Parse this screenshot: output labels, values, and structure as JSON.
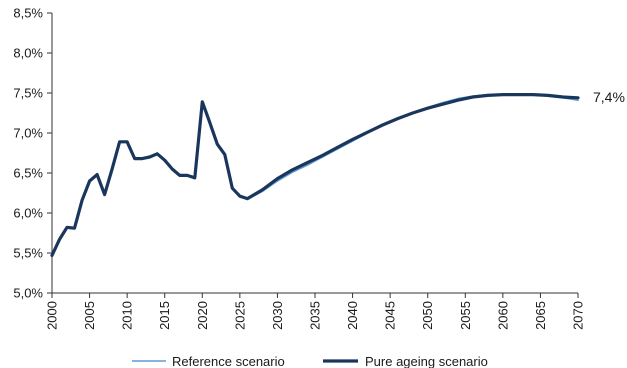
{
  "chart_data": {
    "type": "line",
    "title": "",
    "xlabel": "",
    "ylabel": "",
    "xlim": [
      2000,
      2070
    ],
    "ylim": [
      5.0,
      8.5
    ],
    "x_ticks": [
      2000,
      2005,
      2010,
      2015,
      2020,
      2025,
      2030,
      2035,
      2040,
      2045,
      2050,
      2055,
      2060,
      2065,
      2070
    ],
    "x_tick_labels": [
      "2000",
      "2005",
      "2010",
      "2015",
      "2020",
      "2025",
      "2030",
      "2035",
      "2040",
      "2045",
      "2050",
      "2055",
      "2060",
      "2065",
      "2070"
    ],
    "y_ticks": [
      5.0,
      5.5,
      6.0,
      6.5,
      7.0,
      7.5,
      8.0,
      8.5
    ],
    "y_tick_labels": [
      "5,0%",
      "5,5%",
      "6,0%",
      "6,5%",
      "7,0%",
      "7,5%",
      "8,0%",
      "8,5%"
    ],
    "grid": false,
    "legend_position": "bottom",
    "end_label": "7,4%",
    "series": [
      {
        "name": "Reference scenario",
        "color": "#5b9bd5",
        "x": [
          2000,
          2001,
          2002,
          2003,
          2004,
          2005,
          2006,
          2007,
          2008,
          2009,
          2010,
          2011,
          2012,
          2013,
          2014,
          2015,
          2016,
          2017,
          2018,
          2019,
          2020,
          2021,
          2022,
          2023,
          2024,
          2025,
          2026,
          2028,
          2030,
          2032,
          2034,
          2036,
          2038,
          2040,
          2042,
          2044,
          2046,
          2048,
          2050,
          2052,
          2054,
          2056,
          2058,
          2060,
          2062,
          2064,
          2066,
          2068,
          2070
        ],
        "values": [
          5.47,
          5.67,
          5.82,
          5.81,
          6.16,
          6.4,
          6.48,
          6.23,
          6.55,
          6.89,
          6.89,
          6.68,
          6.68,
          6.7,
          6.74,
          6.66,
          6.55,
          6.47,
          6.47,
          6.44,
          7.39,
          7.13,
          6.86,
          6.73,
          6.31,
          6.21,
          6.17,
          6.27,
          6.4,
          6.51,
          6.6,
          6.7,
          6.8,
          6.9,
          7.0,
          7.1,
          7.17,
          7.25,
          7.32,
          7.38,
          7.43,
          7.46,
          7.48,
          7.48,
          7.48,
          7.48,
          7.46,
          7.44,
          7.41
        ]
      },
      {
        "name": "Pure ageing scenario",
        "color": "#1b365d",
        "x": [
          2000,
          2001,
          2002,
          2003,
          2004,
          2005,
          2006,
          2007,
          2008,
          2009,
          2010,
          2011,
          2012,
          2013,
          2014,
          2015,
          2016,
          2017,
          2018,
          2019,
          2020,
          2021,
          2022,
          2023,
          2024,
          2025,
          2026,
          2028,
          2030,
          2032,
          2034,
          2036,
          2038,
          2040,
          2042,
          2044,
          2046,
          2048,
          2050,
          2052,
          2054,
          2056,
          2058,
          2060,
          2062,
          2064,
          2066,
          2068,
          2070
        ],
        "values": [
          5.47,
          5.67,
          5.82,
          5.81,
          6.16,
          6.4,
          6.48,
          6.23,
          6.55,
          6.89,
          6.89,
          6.68,
          6.68,
          6.7,
          6.74,
          6.66,
          6.55,
          6.47,
          6.47,
          6.44,
          7.39,
          7.13,
          6.86,
          6.73,
          6.31,
          6.21,
          6.18,
          6.29,
          6.43,
          6.54,
          6.63,
          6.72,
          6.82,
          6.92,
          7.01,
          7.1,
          7.18,
          7.25,
          7.31,
          7.36,
          7.41,
          7.45,
          7.47,
          7.48,
          7.48,
          7.48,
          7.47,
          7.45,
          7.44
        ]
      }
    ]
  }
}
